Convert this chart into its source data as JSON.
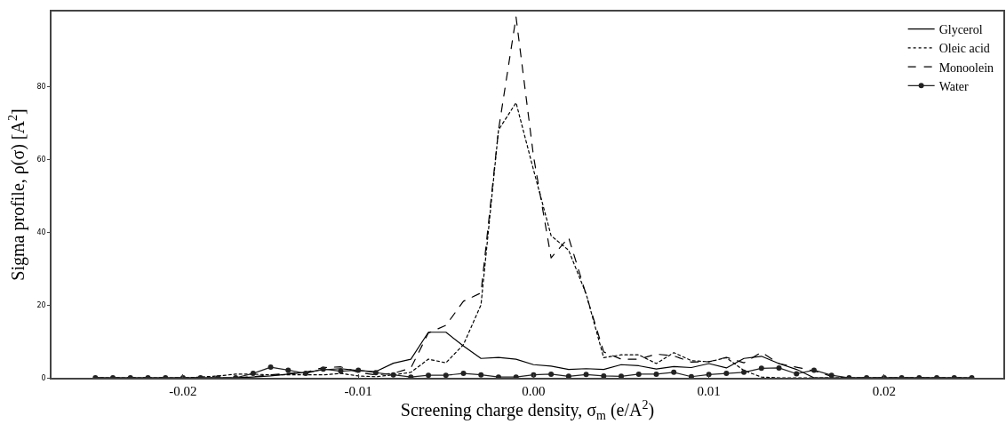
{
  "chart_data": {
    "type": "line",
    "xlabel": "Screening charge density, σ$_{m}$ (e/A$^{2}$)",
    "ylabel": "Sigma profile, ρ(σ) [A$^{2}$]",
    "x": [
      -0.025,
      -0.024,
      -0.023,
      -0.022,
      -0.021,
      -0.02,
      -0.019,
      -0.018,
      -0.017,
      -0.016,
      -0.015,
      -0.014,
      -0.013,
      -0.012,
      -0.011,
      -0.01,
      -0.009,
      -0.008,
      -0.007,
      -0.006,
      -0.005,
      -0.004,
      -0.003,
      -0.002,
      -0.001,
      0,
      0.001,
      0.002,
      0.003,
      0.004,
      0.005,
      0.006,
      0.007,
      0.008,
      0.009,
      0.01,
      0.011,
      0.012,
      0.013,
      0.014,
      0.015,
      0.016,
      0.017,
      0.018,
      0.019,
      0.02,
      0.021,
      0.022,
      0.023,
      0.024,
      0.025
    ],
    "series": [
      {
        "name": "Glycerol",
        "color": "#000000",
        "line_style": "solid",
        "marker": "none",
        "values": [
          0,
          0,
          0,
          0,
          0,
          0,
          0,
          0,
          0,
          0.2,
          0.5,
          1.0,
          1.5,
          2.2,
          2.5,
          2.0,
          1.7,
          4.0,
          5.1,
          12.5,
          12.5,
          8.7,
          5.3,
          5.6,
          5.1,
          3.6,
          3.2,
          2.3,
          2.5,
          2.3,
          3.6,
          3.3,
          2.4,
          3.1,
          2.8,
          3.9,
          2.7,
          5.3,
          5.9,
          3.9,
          2.3,
          0,
          0,
          0,
          0,
          0,
          0,
          0,
          0,
          0,
          0
        ]
      },
      {
        "name": "Oleic acid",
        "color": "#000000",
        "line_style": "dotted",
        "marker": "none",
        "values": [
          0,
          0,
          0,
          0,
          0,
          0,
          0.2,
          0.5,
          1.0,
          1.0,
          0.8,
          0.8,
          0.8,
          0.8,
          1.2,
          0.5,
          0.3,
          0.8,
          1.5,
          5.1,
          4.1,
          9.1,
          20,
          68,
          75.5,
          57,
          39,
          35,
          23,
          5.5,
          6.3,
          6.3,
          3.9,
          6.9,
          4.7,
          4.4,
          5.5,
          2.0,
          0.2,
          0,
          0,
          0,
          0,
          0,
          0,
          0,
          0,
          0,
          0,
          0,
          0
        ]
      },
      {
        "name": "Monoolein",
        "color": "#000000",
        "line_style": "dashed",
        "marker": "none",
        "values": [
          0,
          0,
          0,
          0,
          0,
          0,
          0,
          0,
          0,
          0.3,
          0.8,
          1.2,
          1.5,
          2.8,
          3.0,
          1.5,
          0.8,
          1.2,
          2.7,
          12.3,
          14.4,
          21,
          23.3,
          68,
          99,
          60.7,
          32.9,
          38.5,
          22.8,
          7.1,
          5.1,
          5.1,
          6.5,
          6.0,
          4.3,
          4.4,
          5.6,
          4.1,
          7.0,
          3.9,
          2.9,
          1.9,
          0.4,
          0,
          0,
          0,
          0,
          0,
          0,
          0,
          0
        ]
      },
      {
        "name": "Water",
        "color": "#222222",
        "line_style": "solid",
        "marker": "circle",
        "values": [
          0,
          0,
          0,
          0,
          0,
          0,
          0,
          0,
          0,
          1.2,
          2.9,
          2.1,
          1.2,
          2.4,
          1.8,
          2.1,
          1.4,
          0.8,
          0.2,
          0.7,
          0.7,
          1.2,
          0.8,
          0.2,
          0.2,
          0.8,
          1.0,
          0.4,
          0.9,
          0.5,
          0.4,
          1.0,
          1.0,
          1.5,
          0.3,
          0.9,
          1.2,
          1.5,
          2.6,
          2.7,
          1.1,
          2.1,
          0.7,
          0,
          0,
          0,
          0,
          0,
          0,
          0,
          0
        ]
      }
    ],
    "xlim": [
      -0.0275,
      0.0268
    ],
    "xticks": [
      {
        "value": -0.02,
        "label": "-0.02"
      },
      {
        "value": -0.01,
        "label": "-0.01"
      },
      {
        "value": 0,
        "label": "0.00"
      },
      {
        "value": 0.01,
        "label": "0.01"
      },
      {
        "value": 0.02,
        "label": "0.02"
      }
    ],
    "ylim": [
      0,
      100.5
    ],
    "yticks": [
      0,
      20,
      40,
      60,
      80
    ],
    "grid": false,
    "legend": "top right"
  }
}
